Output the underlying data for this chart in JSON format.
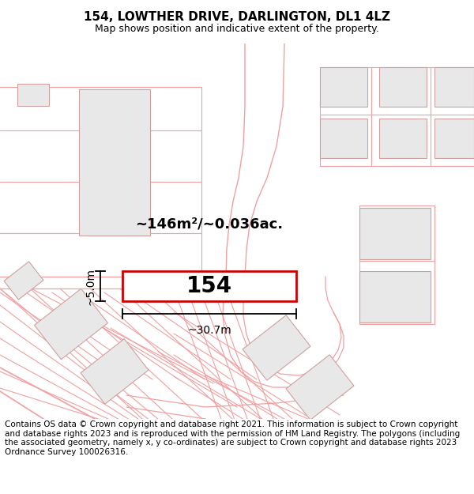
{
  "title": "154, LOWTHER DRIVE, DARLINGTON, DL1 4LZ",
  "subtitle": "Map shows position and indicative extent of the property.",
  "footer": "Contains OS data © Crown copyright and database right 2021. This information is subject to Crown copyright and database rights 2023 and is reproduced with the permission of HM Land Registry. The polygons (including the associated geometry, namely x, y co-ordinates) are subject to Crown copyright and database rights 2023 Ordnance Survey 100026316.",
  "area_text": "~146m²/~0.036ac.",
  "width_text": "~30.7m",
  "height_text": "~5.0m",
  "plot_number": "154",
  "bg_color": "#ffffff",
  "line_color": "#f0a0a0",
  "highlight_color": "#cc0000",
  "building_fill": "#e8e8e8",
  "building_edge": "#d0a0a0",
  "title_fontsize": 11,
  "subtitle_fontsize": 9,
  "footer_fontsize": 7.5
}
